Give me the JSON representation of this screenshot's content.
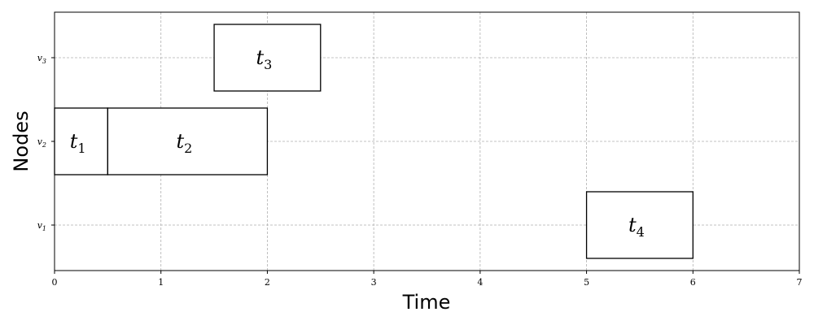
{
  "chart_data": {
    "type": "gantt",
    "xlabel": "Time",
    "ylabel": "Nodes",
    "xlim": [
      0,
      7
    ],
    "xticks": [
      0,
      1,
      2,
      3,
      4,
      5,
      6,
      7
    ],
    "nodes": [
      {
        "id": "v1",
        "base": "v",
        "sub": "1"
      },
      {
        "id": "v2",
        "base": "v",
        "sub": "2"
      },
      {
        "id": "v3",
        "base": "v",
        "sub": "3"
      }
    ],
    "grid": true,
    "tasks": [
      {
        "base": "t",
        "sub": "1",
        "node": "v2",
        "start": 0,
        "end": 0.5
      },
      {
        "base": "t",
        "sub": "2",
        "node": "v2",
        "start": 0.5,
        "end": 2
      },
      {
        "base": "t",
        "sub": "3",
        "node": "v3",
        "start": 1.5,
        "end": 2.5
      },
      {
        "base": "t",
        "sub": "4",
        "node": "v1",
        "start": 5,
        "end": 6
      }
    ]
  }
}
